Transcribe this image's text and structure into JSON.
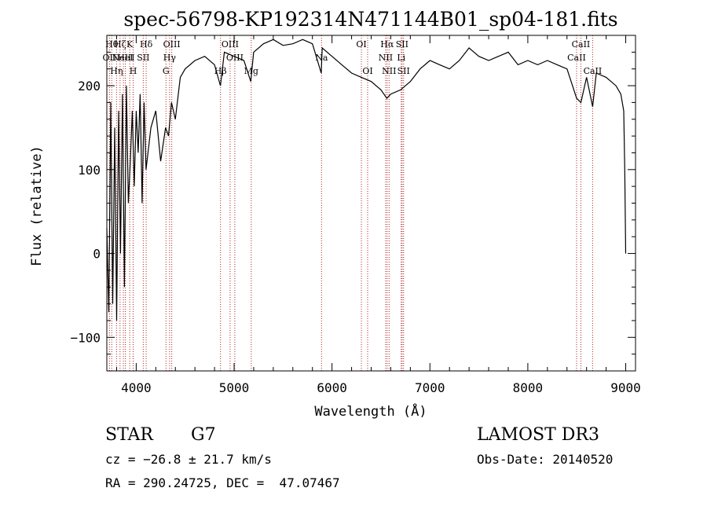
{
  "chart_data": {
    "type": "line",
    "title": "spec-56798-KP192314N471144B01_sp04-181.fits",
    "xlabel": "Wavelength (Å)",
    "ylabel": "Flux (relative)",
    "xlim": [
      3700,
      9100
    ],
    "ylim": [
      -140,
      260
    ],
    "x_ticks": [
      4000,
      5000,
      6000,
      7000,
      8000,
      9000
    ],
    "y_ticks": [
      -100,
      0,
      100,
      200
    ],
    "grid": false,
    "series": [
      {
        "x": [
          3700,
          3720,
          3740,
          3760,
          3780,
          3800,
          3820,
          3840,
          3860,
          3880,
          3900,
          3920,
          3940,
          3960,
          3980,
          4000,
          4020,
          4040,
          4060,
          4080,
          4100,
          4150,
          4200,
          4250,
          4300,
          4330,
          4360,
          4400,
          4450,
          4500,
          4600,
          4700,
          4800,
          4860,
          4900,
          5000,
          5100,
          5170,
          5200,
          5300,
          5400,
          5500,
          5600,
          5700,
          5800,
          5890,
          5900,
          6000,
          6100,
          6200,
          6300,
          6400,
          6500,
          6560,
          6600,
          6700,
          6800,
          6900,
          7000,
          7100,
          7200,
          7300,
          7400,
          7450,
          7500,
          7600,
          7700,
          7800,
          7900,
          8000,
          8100,
          8200,
          8300,
          8400,
          8498,
          8542,
          8600,
          8662,
          8700,
          8800,
          8900,
          8950,
          8980,
          8990,
          9000
        ],
        "y": [
          30,
          -70,
          180,
          -60,
          150,
          -80,
          170,
          0,
          190,
          -40,
          200,
          60,
          110,
          170,
          80,
          170,
          120,
          190,
          60,
          180,
          100,
          150,
          170,
          110,
          150,
          140,
          180,
          160,
          210,
          220,
          230,
          235,
          225,
          200,
          240,
          235,
          230,
          205,
          240,
          250,
          255,
          248,
          250,
          255,
          250,
          215,
          245,
          235,
          225,
          215,
          210,
          205,
          195,
          185,
          190,
          195,
          205,
          220,
          230,
          225,
          220,
          230,
          245,
          240,
          235,
          230,
          235,
          240,
          225,
          230,
          225,
          230,
          225,
          220,
          185,
          180,
          210,
          175,
          215,
          210,
          200,
          190,
          170,
          100,
          0
        ]
      }
    ],
    "lines": [
      {
        "w": 3727,
        "label": "OII",
        "row": 1
      },
      {
        "w": 3750,
        "label": "Hθ",
        "row": 0
      },
      {
        "w": 3799,
        "label": "Hη",
        "row": 2
      },
      {
        "w": 3835,
        "label": "Hζ",
        "row": 0
      },
      {
        "w": 3869,
        "label": "NeIII",
        "row": 1
      },
      {
        "w": 3889,
        "label": "HeI",
        "row": 1
      },
      {
        "w": 3934,
        "label": "K",
        "row": 0
      },
      {
        "w": 3969,
        "label": "H",
        "row": 2
      },
      {
        "w": 4072,
        "label": "SII",
        "row": 1
      },
      {
        "w": 4102,
        "label": "Hδ",
        "row": 0
      },
      {
        "w": 4304,
        "label": "G",
        "row": 2
      },
      {
        "w": 4341,
        "label": "Hγ",
        "row": 1
      },
      {
        "w": 4363,
        "label": "OIII",
        "row": 0
      },
      {
        "w": 4861,
        "label": "Hβ",
        "row": 2
      },
      {
        "w": 4959,
        "label": "OIII",
        "row": 0
      },
      {
        "w": 5007,
        "label": "OIII",
        "row": 1
      },
      {
        "w": 5175,
        "label": "Mg",
        "row": 2
      },
      {
        "w": 5893,
        "label": "Na",
        "row": 1
      },
      {
        "w": 6300,
        "label": "OI",
        "row": 0
      },
      {
        "w": 6364,
        "label": "OI",
        "row": 2
      },
      {
        "w": 6548,
        "label": "NII",
        "row": 1
      },
      {
        "w": 6563,
        "label": "Hα",
        "row": 0
      },
      {
        "w": 6583,
        "label": "NII",
        "row": 2
      },
      {
        "w": 6707,
        "label": "Li",
        "row": 1
      },
      {
        "w": 6716,
        "label": "SII",
        "row": 0
      },
      {
        "w": 6731,
        "label": "SII",
        "row": 2
      },
      {
        "w": 8498,
        "label": "CaII",
        "row": 1
      },
      {
        "w": 8542,
        "label": "CaII",
        "row": 0
      },
      {
        "w": 8662,
        "label": "CaII",
        "row": 2
      }
    ]
  },
  "info": {
    "obj_class": "STAR",
    "subclass": "G7",
    "survey": "LAMOST DR3",
    "cz": "cz = −26.8 ± 21.7 km/s",
    "obs_date": "Obs-Date: 20140520",
    "coords": "RA = 290.24725, DEC =  47.07467"
  },
  "colors": {
    "spectrum": "#000000",
    "line_markers": "#b22222",
    "text": "#000000"
  }
}
